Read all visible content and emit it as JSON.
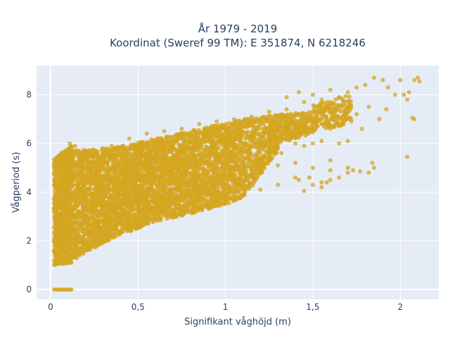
{
  "chart_data": {
    "type": "scatter",
    "title_line1": "År 1979 - 2019",
    "title_line2": "Koordinat (Sweref 99 TM): E 351874, N 6218246",
    "xlabel": "Signifikant våghöjd (m)",
    "ylabel": "Vågperiod (s)",
    "xlim": [
      -0.08,
      2.22
    ],
    "ylim": [
      -0.4,
      9.2
    ],
    "x_ticks": [
      0,
      0.5,
      1,
      1.5,
      2
    ],
    "x_tick_labels": [
      "0",
      "0,5",
      "1",
      "1,5",
      "2"
    ],
    "y_ticks": [
      0,
      2,
      4,
      6,
      8
    ],
    "y_tick_labels": [
      "0",
      "2",
      "4",
      "6",
      "8"
    ],
    "grid": true,
    "plot_background": "#e5ecf6",
    "marker_color": "#d4a520",
    "series": [
      {
        "points": [
          [
            0.02,
            0
          ],
          [
            0.03,
            0
          ],
          [
            0.04,
            0
          ],
          [
            0.05,
            0
          ],
          [
            0.06,
            0
          ],
          [
            0.07,
            0
          ],
          [
            0.08,
            0
          ],
          [
            0.09,
            0
          ],
          [
            0.1,
            0
          ],
          [
            0.11,
            0
          ],
          [
            0.12,
            0
          ],
          [
            0.03,
            1.9
          ],
          [
            0.04,
            2.6
          ],
          [
            0.05,
            3.4
          ],
          [
            0.06,
            4.2
          ],
          [
            0.07,
            5.0
          ],
          [
            0.08,
            5.5
          ],
          [
            0.05,
            1.6
          ],
          [
            0.06,
            1.4
          ],
          [
            0.08,
            1.2
          ],
          [
            0.1,
            1.1
          ],
          [
            0.12,
            1.1
          ],
          [
            0.15,
            1.3
          ],
          [
            0.1,
            5.3
          ],
          [
            0.12,
            5.6
          ],
          [
            0.14,
            5.9
          ],
          [
            0.11,
            6.0
          ],
          [
            0.16,
            5.7
          ],
          [
            0.2,
            5.6
          ],
          [
            0.25,
            5.7
          ],
          [
            0.3,
            5.8
          ],
          [
            0.2,
            1.6
          ],
          [
            0.3,
            2.0
          ],
          [
            0.4,
            2.4
          ],
          [
            0.5,
            2.7
          ],
          [
            0.6,
            2.9
          ],
          [
            0.7,
            3.1
          ],
          [
            0.8,
            3.3
          ],
          [
            0.9,
            3.5
          ],
          [
            1.0,
            3.7
          ],
          [
            1.1,
            3.9
          ],
          [
            1.2,
            4.1
          ],
          [
            1.3,
            4.3
          ],
          [
            1.4,
            4.6
          ],
          [
            1.42,
            4.5
          ],
          [
            1.5,
            4.3
          ],
          [
            1.55,
            4.4
          ],
          [
            1.6,
            4.5
          ],
          [
            1.65,
            4.6
          ],
          [
            1.7,
            4.8
          ],
          [
            1.73,
            4.9
          ],
          [
            1.6,
            4.9
          ],
          [
            1.48,
            4.6
          ],
          [
            0.35,
            5.9
          ],
          [
            0.45,
            6.2
          ],
          [
            0.55,
            6.4
          ],
          [
            0.65,
            6.5
          ],
          [
            0.75,
            6.6
          ],
          [
            0.85,
            6.8
          ],
          [
            0.95,
            6.9
          ],
          [
            1.05,
            7.0
          ],
          [
            1.15,
            7.1
          ],
          [
            1.25,
            7.3
          ],
          [
            1.35,
            7.4
          ],
          [
            1.45,
            7.7
          ],
          [
            1.55,
            7.8
          ],
          [
            1.65,
            7.9
          ],
          [
            1.35,
            7.9
          ],
          [
            1.42,
            8.1
          ],
          [
            1.5,
            8.0
          ],
          [
            1.6,
            8.2
          ],
          [
            1.7,
            8.1
          ],
          [
            1.75,
            8.3
          ],
          [
            1.8,
            8.4
          ],
          [
            1.85,
            8.7
          ],
          [
            1.9,
            8.6
          ],
          [
            1.93,
            8.3
          ],
          [
            1.97,
            8.0
          ],
          [
            2.02,
            8.0
          ],
          [
            2.05,
            8.1
          ],
          [
            2.08,
            8.6
          ],
          [
            2.1,
            8.7
          ],
          [
            2.11,
            8.55
          ],
          [
            2.0,
            8.6
          ],
          [
            2.04,
            7.8
          ],
          [
            2.07,
            7.05
          ],
          [
            2.08,
            7.0
          ],
          [
            1.92,
            7.4
          ],
          [
            1.88,
            7.0
          ],
          [
            1.82,
            7.5
          ],
          [
            1.75,
            7.2
          ],
          [
            1.4,
            6.0
          ],
          [
            1.45,
            5.9
          ],
          [
            1.5,
            6.0
          ],
          [
            1.55,
            6.1
          ],
          [
            1.6,
            6.6
          ],
          [
            1.65,
            6.7
          ],
          [
            1.72,
            6.9
          ],
          [
            1.78,
            6.6
          ],
          [
            1.7,
            6.1
          ],
          [
            1.65,
            6.0
          ],
          [
            1.6,
            5.3
          ],
          [
            1.7,
            5.0
          ],
          [
            1.85,
            5.0
          ],
          [
            1.82,
            4.8
          ],
          [
            1.84,
            5.2
          ],
          [
            2.04,
            5.45
          ],
          [
            1.77,
            4.85
          ],
          [
            0.5,
            4.2
          ],
          [
            0.7,
            4.6
          ],
          [
            0.9,
            4.8
          ],
          [
            1.1,
            4.9
          ],
          [
            1.2,
            5.0
          ],
          [
            1.3,
            5.1
          ],
          [
            1.4,
            5.2
          ],
          [
            1.5,
            5.0
          ],
          [
            1.55,
            4.2
          ],
          [
            1.45,
            4.05
          ],
          [
            1.58,
            4.4
          ],
          [
            0.15,
            3.0
          ],
          [
            0.25,
            3.8
          ],
          [
            0.35,
            4.5
          ],
          [
            0.45,
            5.1
          ],
          [
            0.55,
            5.3
          ],
          [
            0.65,
            5.6
          ],
          [
            0.75,
            5.8
          ],
          [
            0.85,
            6.0
          ],
          [
            0.95,
            6.1
          ],
          [
            1.05,
            6.3
          ],
          [
            1.15,
            6.4
          ],
          [
            1.25,
            6.5
          ],
          [
            0.95,
            5.3
          ],
          [
            1.0,
            4.6
          ],
          [
            1.05,
            5.7
          ],
          [
            1.12,
            5.9
          ],
          [
            1.18,
            6.0
          ],
          [
            1.22,
            5.5
          ],
          [
            1.28,
            6.1
          ],
          [
            1.32,
            5.6
          ],
          [
            1.38,
            6.3
          ],
          [
            1.42,
            6.55
          ],
          [
            1.46,
            6.7
          ],
          [
            1.5,
            6.9
          ],
          [
            1.55,
            6.8
          ]
        ]
      }
    ],
    "bands": [
      {
        "x0": 0.02,
        "x1": 0.12,
        "ylo0": 1.0,
        "ylo1": 1.1,
        "yhi0": 5.5,
        "yhi1": 5.9,
        "n": 900
      },
      {
        "x0": 0.12,
        "x1": 0.35,
        "ylo0": 1.2,
        "ylo1": 2.1,
        "yhi0": 5.7,
        "yhi1": 5.8,
        "n": 1200
      },
      {
        "x0": 0.35,
        "x1": 0.6,
        "ylo0": 2.1,
        "ylo1": 2.8,
        "yhi0": 5.8,
        "yhi1": 6.2,
        "n": 1300
      },
      {
        "x0": 0.6,
        "x1": 0.85,
        "ylo0": 2.8,
        "ylo1": 3.2,
        "yhi0": 6.2,
        "yhi1": 6.6,
        "n": 1100
      },
      {
        "x0": 0.85,
        "x1": 1.1,
        "ylo0": 3.2,
        "ylo1": 3.7,
        "yhi0": 6.6,
        "yhi1": 7.0,
        "n": 900
      },
      {
        "x0": 1.1,
        "x1": 1.3,
        "ylo0": 3.7,
        "ylo1": 5.7,
        "yhi0": 7.0,
        "yhi1": 7.2,
        "n": 500
      },
      {
        "x0": 1.3,
        "x1": 1.5,
        "ylo0": 6.0,
        "ylo1": 6.4,
        "yhi0": 7.2,
        "yhi1": 7.3,
        "n": 260
      },
      {
        "x0": 1.5,
        "x1": 1.72,
        "ylo0": 6.5,
        "ylo1": 6.8,
        "yhi0": 7.6,
        "yhi1": 8.0,
        "n": 200
      }
    ]
  }
}
